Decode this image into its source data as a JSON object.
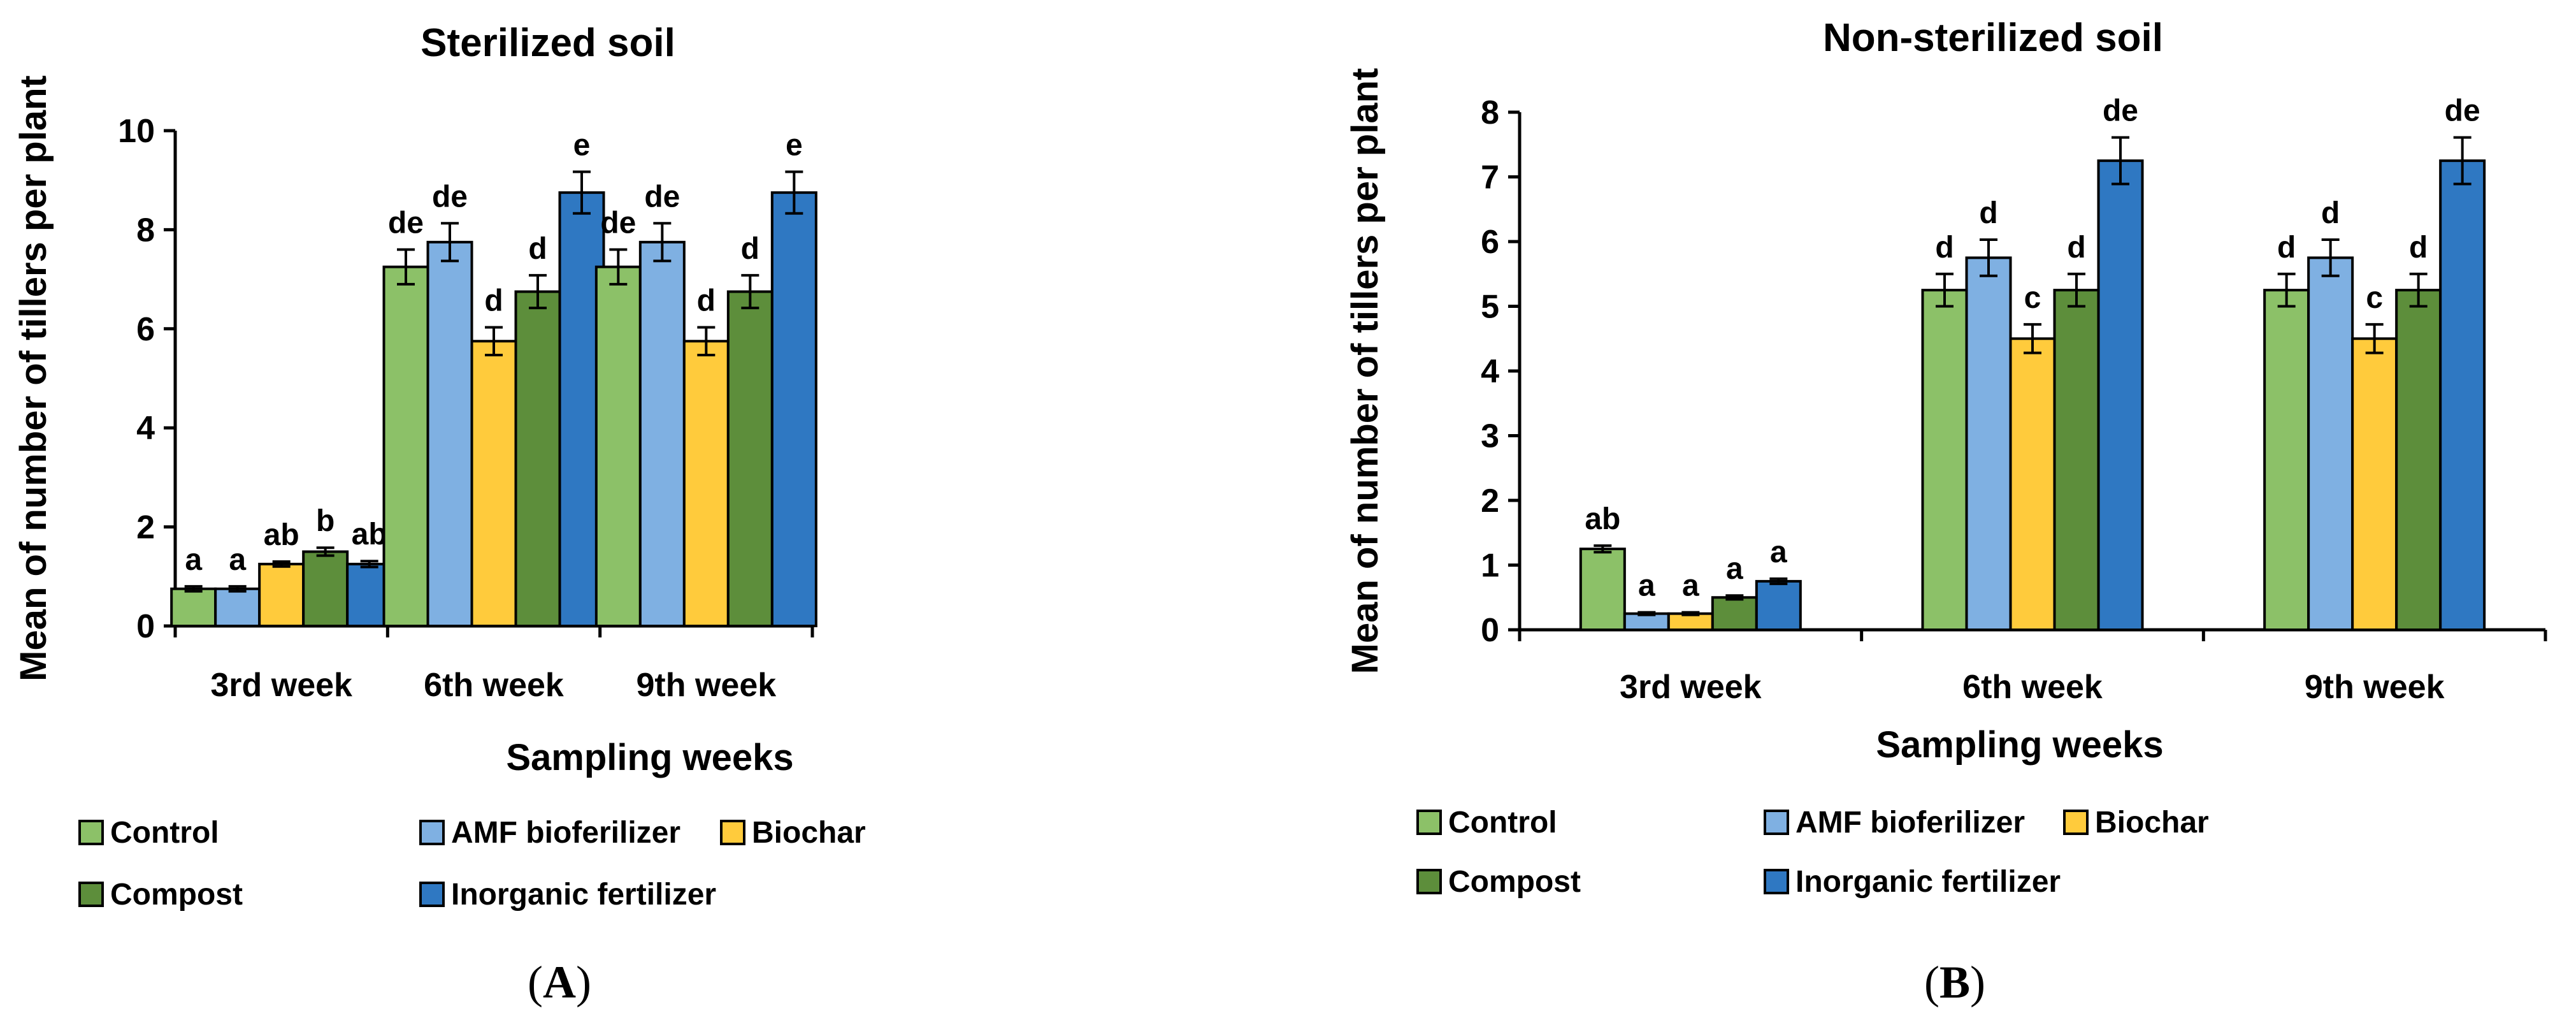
{
  "colors": {
    "Control": "#8cc168",
    "AMF bioferilizer": "#7fb0e2",
    "Biochar": "#ffcb3c",
    "Compost": "#5d8e3b",
    "Inorganic fertilizer": "#2f78c2",
    "axis": "#000000"
  },
  "legend": {
    "items": [
      "Control",
      "AMF bioferilizer",
      "Biochar",
      "Compost",
      "Inorganic fertilizer"
    ]
  },
  "panels": [
    {
      "tag": "A",
      "paren_open": "(",
      "paren_close": ")"
    },
    {
      "tag": "B",
      "paren_open": "(",
      "paren_close": ")"
    }
  ],
  "chart_data": [
    {
      "type": "bar",
      "title": "Sterilized soil",
      "xlabel": "Sampling weeks",
      "ylabel": "Mean of number of tillers per plant",
      "ylim": [
        0,
        10
      ],
      "yticks": [
        0,
        2,
        4,
        6,
        8,
        10
      ],
      "yticklabels": [
        "0",
        "2",
        "4",
        "6",
        "8",
        "10"
      ],
      "categories": [
        "3rd week",
        "6th week",
        "9th week"
      ],
      "series": [
        {
          "name": "Control",
          "values": [
            0.75,
            7.25,
            7.25
          ],
          "errors": [
            0.05,
            0.35,
            0.35
          ],
          "labels": [
            "a",
            "de",
            "de"
          ]
        },
        {
          "name": "AMF bioferilizer",
          "values": [
            0.75,
            7.75,
            7.75
          ],
          "errors": [
            0.05,
            0.38,
            0.38
          ],
          "labels": [
            "a",
            "de",
            "de"
          ]
        },
        {
          "name": "Biochar",
          "values": [
            1.25,
            5.75,
            5.75
          ],
          "errors": [
            0.05,
            0.28,
            0.28
          ],
          "labels": [
            "ab",
            "d",
            "d"
          ]
        },
        {
          "name": "Compost",
          "values": [
            1.5,
            6.75,
            6.75
          ],
          "errors": [
            0.08,
            0.33,
            0.33
          ],
          "labels": [
            "b",
            "d",
            "d"
          ]
        },
        {
          "name": "Inorganic fertilizer",
          "values": [
            1.25,
            8.75,
            8.75
          ],
          "errors": [
            0.06,
            0.42,
            0.42
          ],
          "labels": [
            "ab",
            "e",
            "e"
          ]
        }
      ]
    },
    {
      "type": "bar",
      "title": "Non-sterilized soil",
      "xlabel": "Sampling weeks",
      "ylabel": "Mean of number of tillers per plant",
      "ylim": [
        0,
        8
      ],
      "yticks": [
        0,
        1,
        2,
        3,
        4,
        5,
        6,
        7,
        8
      ],
      "yticklabels": [
        "0",
        "1",
        "2",
        "3",
        "4",
        "5",
        "6",
        "7",
        "8"
      ],
      "categories": [
        "3rd week",
        "6th week",
        "9th week"
      ],
      "series": [
        {
          "name": "Control",
          "values": [
            1.25,
            5.25,
            5.25
          ],
          "errors": [
            0.05,
            0.25,
            0.25
          ],
          "labels": [
            "ab",
            "d",
            "d"
          ]
        },
        {
          "name": "AMF bioferilizer",
          "values": [
            0.25,
            5.75,
            5.75
          ],
          "errors": [
            0.02,
            0.28,
            0.28
          ],
          "labels": [
            "a",
            "d",
            "d"
          ]
        },
        {
          "name": "Biochar",
          "values": [
            0.25,
            4.5,
            4.5
          ],
          "errors": [
            0.02,
            0.22,
            0.22
          ],
          "labels": [
            "a",
            "c",
            "c"
          ]
        },
        {
          "name": "Compost",
          "values": [
            0.5,
            5.25,
            5.25
          ],
          "errors": [
            0.03,
            0.25,
            0.25
          ],
          "labels": [
            "a",
            "d",
            "d"
          ]
        },
        {
          "name": "Inorganic fertilizer",
          "values": [
            0.75,
            7.25,
            7.25
          ],
          "errors": [
            0.04,
            0.36,
            0.36
          ],
          "labels": [
            "a",
            "de",
            "de"
          ]
        }
      ]
    }
  ]
}
